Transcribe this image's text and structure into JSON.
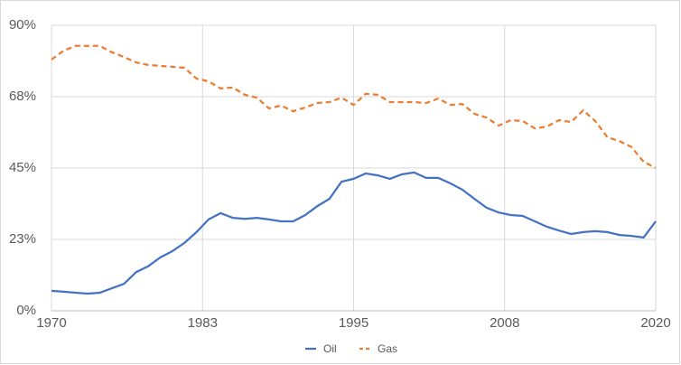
{
  "chart_data": {
    "type": "line",
    "x": [
      1970,
      1971,
      1972,
      1973,
      1974,
      1975,
      1976,
      1977,
      1978,
      1979,
      1980,
      1981,
      1982,
      1983,
      1984,
      1985,
      1986,
      1987,
      1988,
      1989,
      1990,
      1991,
      1992,
      1993,
      1994,
      1995,
      1996,
      1997,
      1998,
      1999,
      2000,
      2001,
      2002,
      2003,
      2004,
      2005,
      2006,
      2007,
      2008,
      2009,
      2010,
      2011,
      2012,
      2013,
      2014,
      2015,
      2016,
      2017,
      2018,
      2019,
      2020
    ],
    "series": [
      {
        "name": "Oil",
        "color": "#4472c4",
        "dash": false,
        "values": [
          6.3,
          6.0,
          5.7,
          5.4,
          5.7,
          7.1,
          8.5,
          12.2,
          14.0,
          16.8,
          18.8,
          21.4,
          24.8,
          28.8,
          30.8,
          29.3,
          29.0,
          29.3,
          28.8,
          28.2,
          28.2,
          30.2,
          33.0,
          35.3,
          40.7,
          41.6,
          43.3,
          42.7,
          41.6,
          43.0,
          43.6,
          41.9,
          41.9,
          40.2,
          38.2,
          35.3,
          32.5,
          31.0,
          30.2,
          29.9,
          28.2,
          26.5,
          25.3,
          24.2,
          24.8,
          25.1,
          24.8,
          23.9,
          23.6,
          23.1,
          28.2
        ]
      },
      {
        "name": "Gas",
        "color": "#ed7d31",
        "dash": true,
        "values": [
          79.2,
          82.0,
          83.5,
          83.5,
          83.5,
          81.5,
          80.0,
          78.3,
          77.5,
          77.2,
          76.9,
          76.6,
          73.2,
          72.3,
          70.1,
          70.4,
          68.1,
          67.2,
          63.8,
          64.7,
          62.9,
          64.1,
          65.5,
          65.8,
          67.2,
          64.9,
          68.4,
          68.1,
          65.8,
          65.8,
          65.8,
          65.5,
          66.9,
          64.9,
          65.2,
          62.1,
          60.9,
          58.4,
          60.1,
          59.8,
          57.5,
          58.1,
          60.1,
          59.5,
          63.2,
          59.8,
          54.7,
          53.5,
          51.6,
          47.0,
          45.0
        ]
      }
    ],
    "xlim": [
      1970,
      2020
    ],
    "xticks": [
      1970,
      {
        "value": 1982.5,
        "label": "1983"
      },
      1995,
      {
        "value": 2007.5,
        "label": "2008"
      },
      2020
    ],
    "ylim": [
      0,
      90
    ],
    "yticks": [
      {
        "value": 0,
        "label": "0%"
      },
      {
        "value": 22.5,
        "label": "23%"
      },
      {
        "value": 45,
        "label": "45%"
      },
      {
        "value": 67.5,
        "label": "68%"
      },
      {
        "value": 90,
        "label": "90%"
      }
    ],
    "grid": true,
    "legend": "bottom"
  }
}
